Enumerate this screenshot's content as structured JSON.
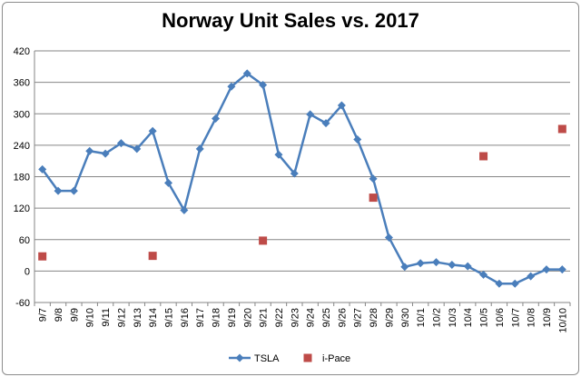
{
  "chart_data": {
    "type": "line",
    "title": "Norway Unit Sales vs. 2017",
    "categories": [
      "9/7",
      "9/8",
      "9/9",
      "9/10",
      "9/11",
      "9/12",
      "9/13",
      "9/14",
      "9/15",
      "9/16",
      "9/17",
      "9/18",
      "9/19",
      "9/20",
      "9/21",
      "9/22",
      "9/23",
      "9/24",
      "9/25",
      "9/26",
      "9/27",
      "9/28",
      "9/29",
      "9/30",
      "10/1",
      "10/2",
      "10/3",
      "10/4",
      "10/5",
      "10/6",
      "10/7",
      "10/8",
      "10/9",
      "10/10"
    ],
    "ylim": [
      -60,
      420
    ],
    "yticks": [
      -60,
      0,
      60,
      120,
      180,
      240,
      300,
      360,
      420
    ],
    "grid": true,
    "legend_position": "bottom",
    "series": [
      {
        "name": "TSLA",
        "style": "line",
        "color": "#4a7ebb",
        "marker": "diamond",
        "values": [
          194,
          153,
          153,
          229,
          224,
          244,
          233,
          267,
          168,
          116,
          233,
          291,
          352,
          377,
          355,
          222,
          186,
          299,
          282,
          316,
          251,
          176,
          64,
          8,
          15,
          17,
          12,
          9,
          -7,
          -24,
          -24,
          -10,
          3,
          3
        ]
      },
      {
        "name": "i-Pace",
        "style": "markers",
        "color": "#be4b48",
        "marker": "square",
        "points": [
          {
            "x": "9/7",
            "y": 28
          },
          {
            "x": "9/14",
            "y": 29
          },
          {
            "x": "9/21",
            "y": 58
          },
          {
            "x": "9/28",
            "y": 140
          },
          {
            "x": "10/5",
            "y": 219
          },
          {
            "x": "10/10",
            "y": 271
          }
        ]
      }
    ]
  }
}
